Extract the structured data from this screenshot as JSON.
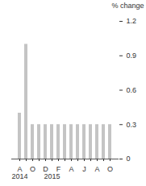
{
  "chart_data": {
    "type": "bar",
    "y_label": "% change",
    "categories": [
      "A",
      null,
      "O",
      null,
      "D",
      null,
      "F",
      null,
      "A",
      null,
      "J",
      null,
      "A",
      null,
      "O"
    ],
    "x_sublabels": [
      "2014",
      null,
      null,
      null,
      null,
      "2015",
      null,
      null,
      null,
      null,
      null,
      null,
      null,
      null,
      null
    ],
    "values": [
      0.4,
      1.0,
      0.3,
      0.3,
      0.3,
      0.3,
      0.3,
      0.3,
      0.3,
      0.3,
      0.3,
      0.3,
      0.3,
      0.3,
      0.3
    ],
    "color": "#c4c4c4",
    "ylim": [
      0,
      1.2
    ],
    "yticks": [
      0,
      0.3,
      0.6,
      0.9,
      1.2
    ],
    "grid": false
  }
}
